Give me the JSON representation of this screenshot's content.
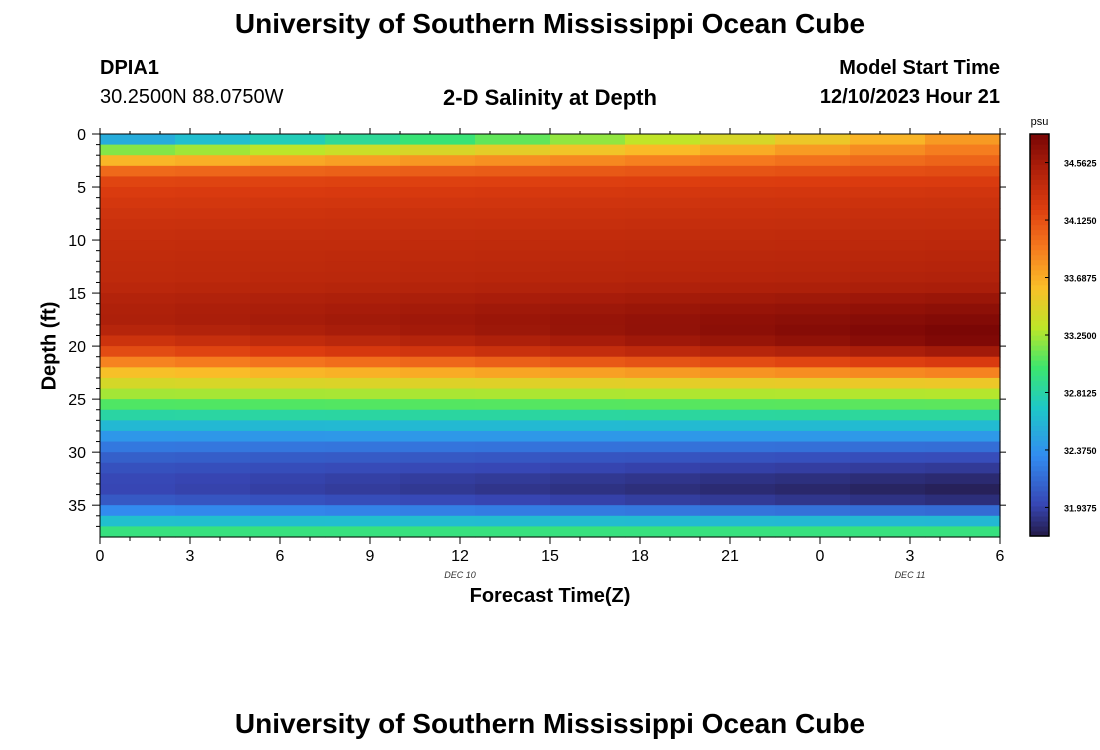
{
  "header": {
    "title": "University of Southern Mississippi Ocean Cube",
    "station_id": "DPIA1",
    "station_coords": "30.2500N  88.0750W",
    "chart_title": "2-D Salinity at Depth",
    "model_start_label": "Model Start Time",
    "model_start_value": "12/10/2023 Hour 21"
  },
  "footer": {
    "title": "University of Southern Mississippi Ocean Cube"
  },
  "chart_data": {
    "type": "heatmap",
    "title": "2-D Salinity at Depth",
    "xlabel": "Forecast Time(Z)",
    "ylabel": "Depth (ft)",
    "x_tick_labels": [
      "0",
      "3",
      "6",
      "9",
      "12",
      "15",
      "18",
      "21",
      "0",
      "3",
      "6"
    ],
    "date_labels": [
      {
        "text": "DEC 10",
        "at_tick": 4
      },
      {
        "text": "DEC 11",
        "at_tick": 9
      }
    ],
    "y_ticks": [
      0,
      5,
      10,
      15,
      20,
      25,
      30,
      35
    ],
    "ylim": [
      0,
      38
    ],
    "time_columns": 12,
    "depth_rows": 38,
    "units": "psu",
    "colorbar_range": [
      31.72,
      34.78
    ],
    "colorbar_ticks": [
      "34.5625",
      "34.1250",
      "33.6875",
      "33.2500",
      "32.8125",
      "32.3750",
      "31.9375"
    ],
    "colorbar_tick_values": [
      34.5625,
      34.125,
      33.6875,
      33.25,
      32.8125,
      32.375,
      31.9375
    ],
    "profile_depths_ft": [
      0,
      1,
      2,
      3,
      4,
      5,
      7,
      10,
      14,
      16,
      18,
      19,
      20,
      21,
      22,
      23,
      24,
      25,
      26,
      27,
      28,
      29,
      30,
      31,
      32,
      33,
      34,
      35,
      36,
      37,
      38
    ],
    "profile_start": [
      32.15,
      32.9,
      33.45,
      33.85,
      34.15,
      34.22,
      34.3,
      34.38,
      34.42,
      34.5,
      34.52,
      34.4,
      34.25,
      34.05,
      33.7,
      33.5,
      33.35,
      33.15,
      32.95,
      32.7,
      32.5,
      32.3,
      32.15,
      32.05,
      32.0,
      31.95,
      31.98,
      32.15,
      32.5,
      32.8,
      33.1
    ],
    "profile_end": [
      33.7,
      33.85,
      33.95,
      34.1,
      34.2,
      34.28,
      34.35,
      34.42,
      34.5,
      34.65,
      34.75,
      34.78,
      34.7,
      34.45,
      34.05,
      33.7,
      33.4,
      33.18,
      32.98,
      32.72,
      32.52,
      32.3,
      32.05,
      31.95,
      31.85,
      31.78,
      31.75,
      31.92,
      32.4,
      32.8,
      33.1
    ]
  }
}
